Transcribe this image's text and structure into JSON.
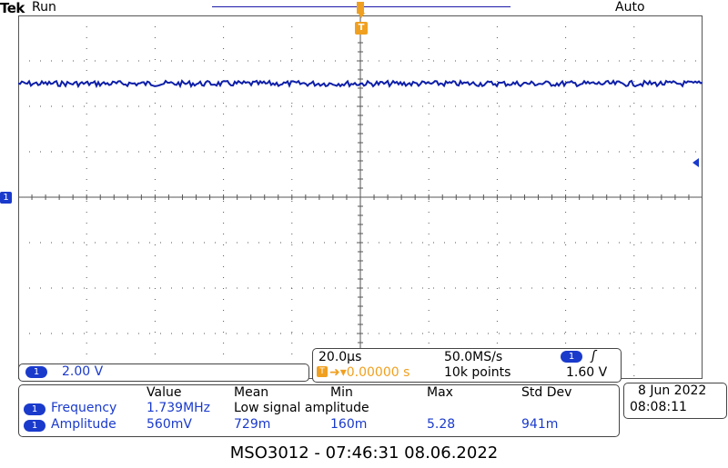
{
  "header": {
    "brand": "Tek",
    "run_state": "Run",
    "trigger_mode": "Auto"
  },
  "markers": {
    "trigger_marker": "T",
    "ch1_marker": "1"
  },
  "colors": {
    "channel1": "#1a3acc",
    "trigger": "#f0a020",
    "trace": "#0d1fa8"
  },
  "channel": {
    "pill": "1",
    "scale": "2.00 V"
  },
  "timebase": {
    "horizontal_scale": "20.0µs",
    "sample_rate": "50.0MS/s",
    "trigger_source_pill": "1",
    "trigger_edge": "ʃ",
    "trigger_position_marker": "T",
    "trigger_position": "➜▾0.00000 s",
    "record_length": "10k points",
    "trigger_level": "1.60 V"
  },
  "measurements": {
    "headers": [
      "Value",
      "Mean",
      "Min",
      "Max",
      "Std Dev"
    ],
    "rows": [
      {
        "source": "1",
        "name": "Frequency",
        "value": "1.739MHz",
        "mean": "Low signal amplitude",
        "min": "",
        "max": "",
        "std": ""
      },
      {
        "source": "1",
        "name": "Amplitude",
        "value": "560mV",
        "mean": "729m",
        "min": "160m",
        "max": "5.28",
        "std": "941m"
      }
    ]
  },
  "datetime": {
    "date": "8 Jun 2022",
    "time": "08:08:11"
  },
  "footer": {
    "caption": "MSO3012 - 07:46:31    08.06.2022"
  }
}
